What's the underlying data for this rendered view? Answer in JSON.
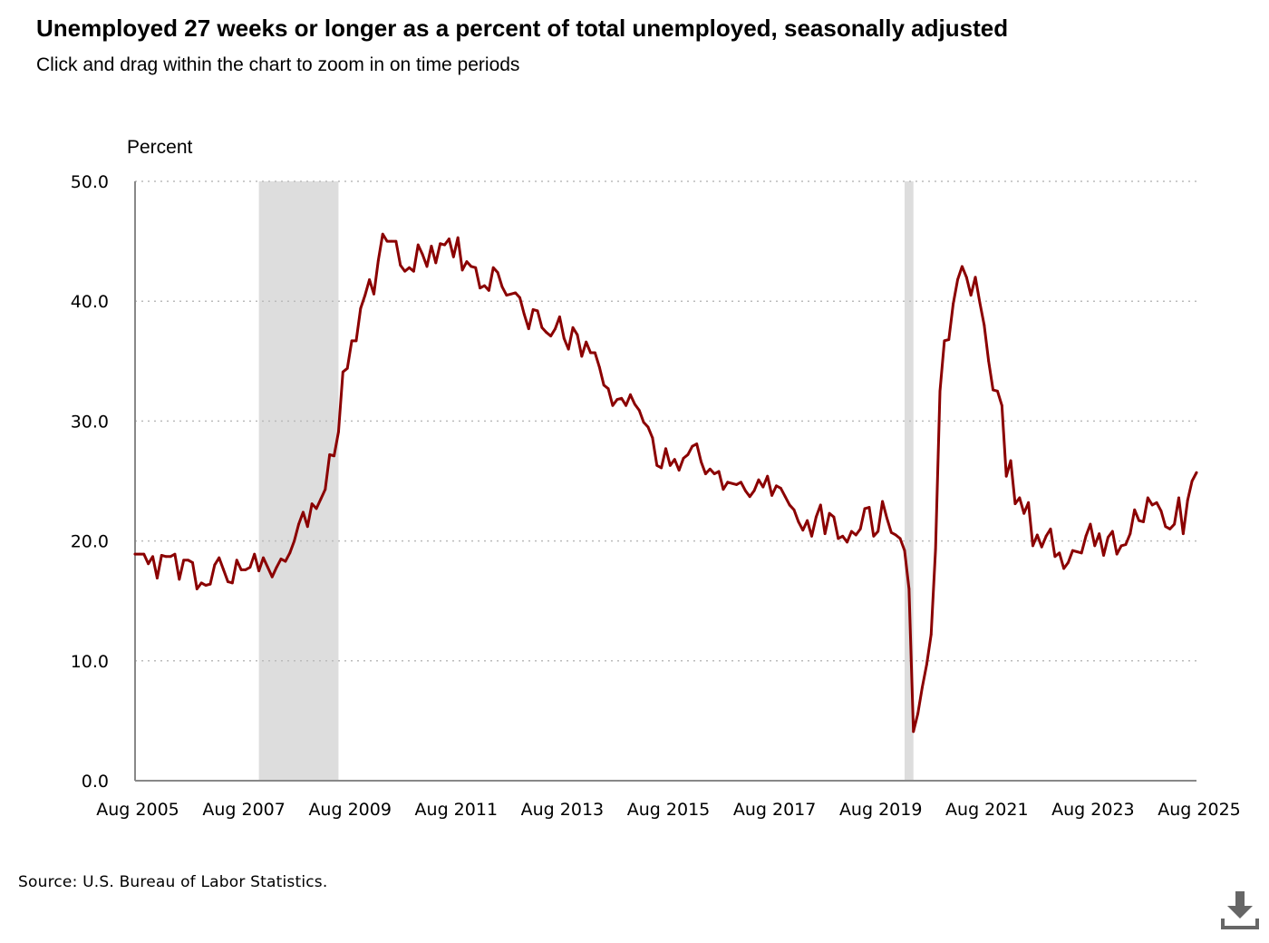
{
  "title": "Unemployed 27 weeks or longer as a percent of total unemployed, seasonally adjusted",
  "subtitle": "Click and drag within the chart to zoom in on time periods",
  "source": "Source: U.S. Bureau of Labor Statistics.",
  "download": {
    "icon": "download-icon"
  },
  "colors": {
    "line": "#8b0000",
    "recession": "#dddddd",
    "grid": "#bbbbbb",
    "axis": "#888888"
  },
  "chart_data": {
    "type": "line",
    "title": "Unemployed 27 weeks or longer as a percent of total unemployed, seasonally adjusted",
    "ylabel": "Percent",
    "xlabel": "",
    "ylim": [
      0,
      50
    ],
    "grid": true,
    "x_start": "Aug 2005",
    "x_end": "Aug 2025",
    "x_ticks": [
      "Aug 2005",
      "Aug 2007",
      "Aug 2009",
      "Aug 2011",
      "Aug 2013",
      "Aug 2015",
      "Aug 2017",
      "Aug 2019",
      "Aug 2021",
      "Aug 2023",
      "Aug 2025"
    ],
    "y_ticks": [
      "0.0",
      "10.0",
      "20.0",
      "30.0",
      "40.0",
      "50.0"
    ],
    "recessions": [
      {
        "start": "Dec 2007",
        "end": "Jun 2009"
      },
      {
        "start": "Feb 2020",
        "end": "Apr 2020"
      }
    ],
    "series": [
      {
        "name": "Unemployed 27 weeks or longer, % of total unemployed",
        "start": "Aug 2005",
        "frequency": "monthly",
        "values": [
          18.9,
          18.9,
          18.9,
          18.1,
          18.7,
          16.9,
          18.8,
          18.7,
          18.7,
          18.9,
          16.8,
          18.4,
          18.4,
          18.2,
          16.0,
          16.5,
          16.3,
          16.4,
          18.0,
          18.6,
          17.6,
          16.6,
          16.5,
          18.4,
          17.6,
          17.6,
          17.8,
          18.9,
          17.5,
          18.6,
          17.8,
          17.0,
          17.8,
          18.5,
          18.3,
          19.0,
          20.0,
          21.4,
          22.4,
          21.2,
          23.1,
          22.7,
          23.5,
          24.3,
          27.2,
          27.1,
          29.1,
          34.1,
          34.4,
          36.7,
          36.7,
          39.4,
          40.5,
          41.8,
          40.6,
          43.4,
          45.6,
          45.0,
          45.0,
          45.0,
          43.0,
          42.5,
          42.8,
          42.5,
          44.7,
          43.9,
          42.9,
          44.6,
          43.2,
          44.8,
          44.7,
          45.2,
          43.7,
          45.3,
          42.6,
          43.3,
          42.9,
          42.8,
          41.1,
          41.3,
          40.9,
          42.8,
          42.4,
          41.2,
          40.5,
          40.6,
          40.7,
          40.3,
          38.9,
          37.7,
          39.3,
          39.2,
          37.8,
          37.4,
          37.1,
          37.7,
          38.7,
          36.9,
          36.0,
          37.8,
          37.2,
          35.4,
          36.6,
          35.7,
          35.7,
          34.5,
          33.0,
          32.7,
          31.3,
          31.8,
          31.9,
          31.3,
          32.2,
          31.4,
          30.9,
          29.9,
          29.5,
          28.6,
          26.3,
          26.1,
          27.7,
          26.3,
          26.8,
          25.9,
          26.9,
          27.2,
          27.9,
          28.1,
          26.6,
          25.6,
          26.0,
          25.6,
          25.8,
          24.3,
          24.9,
          24.8,
          24.7,
          24.9,
          24.2,
          23.7,
          24.2,
          25.1,
          24.5,
          25.4,
          23.8,
          24.6,
          24.4,
          23.7,
          23.0,
          22.6,
          21.6,
          20.9,
          21.7,
          20.4,
          22.0,
          23.0,
          20.6,
          22.3,
          22.0,
          20.2,
          20.4,
          19.9,
          20.8,
          20.5,
          21.0,
          22.7,
          22.8,
          20.4,
          20.8,
          23.3,
          21.9,
          20.7,
          20.5,
          20.2,
          19.2,
          16.0,
          4.1,
          5.6,
          7.8,
          9.7,
          12.2,
          19.3,
          32.5,
          36.7,
          36.8,
          39.8,
          41.8,
          42.9,
          42.0,
          40.5,
          42.0,
          39.9,
          38.0,
          35.0,
          32.6,
          32.5,
          31.3,
          25.4,
          26.7,
          23.1,
          23.6,
          22.3,
          23.2,
          19.6,
          20.5,
          19.5,
          20.4,
          21.0,
          18.7,
          19.0,
          17.7,
          18.2,
          19.2,
          19.1,
          19.0,
          20.4,
          21.4,
          19.6,
          20.6,
          18.8,
          20.3,
          20.8,
          18.9,
          19.6,
          19.7,
          20.6,
          22.6,
          21.7,
          21.6,
          23.6,
          23.0,
          23.2,
          22.5,
          21.2,
          21.0,
          21.4,
          23.6,
          20.6,
          23.4,
          25.0,
          25.7
        ]
      }
    ]
  }
}
